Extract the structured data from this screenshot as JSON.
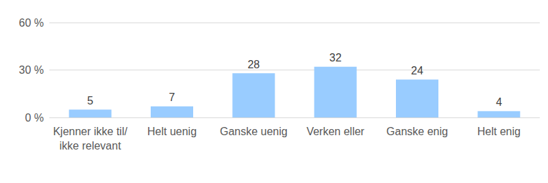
{
  "chart_data": {
    "type": "bar",
    "categories": [
      "Kjenner ikke til/ikke relevant",
      "Helt uenig",
      "Ganske uenig",
      "Verken eller",
      "Ganske enig",
      "Helt enig"
    ],
    "values": [
      5,
      7,
      28,
      32,
      24,
      4
    ],
    "color": "#99ccff",
    "ylim": [
      0,
      60
    ],
    "yticks": [
      {
        "value": 0,
        "label": "0 %"
      },
      {
        "value": 30,
        "label": "30 %"
      },
      {
        "value": 60,
        "label": "60 %"
      }
    ],
    "grid": true,
    "data_labels": true
  }
}
